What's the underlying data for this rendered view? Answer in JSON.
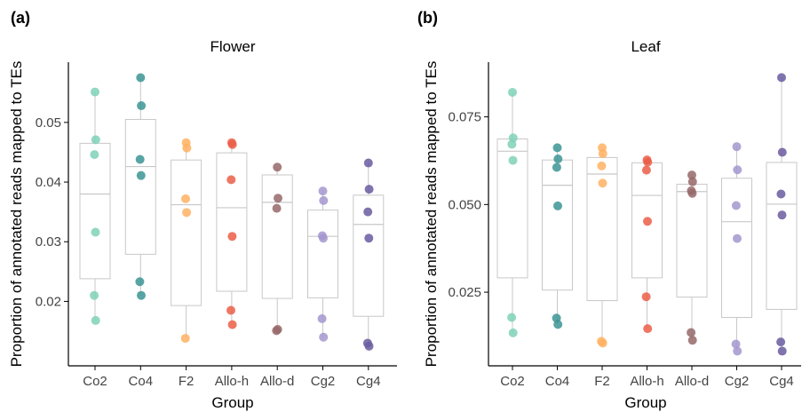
{
  "chart_data": [
    {
      "panel_label": "(a)",
      "type": "box+strip",
      "title": "Flower",
      "xlabel": "Group",
      "ylabel": "Proportion of annotated reads mapped to TEs",
      "categories": [
        "Co2",
        "Co4",
        "F2",
        "Allo-h",
        "Allo-d",
        "Cg2",
        "Cg4"
      ],
      "colors": [
        "#7fd1b9",
        "#3c9494",
        "#ffb262",
        "#eb5e48",
        "#96686a",
        "#a497cf",
        "#6b5ba0"
      ],
      "ylim": [
        0.0092,
        0.0601
      ],
      "yticks": [
        0.02,
        0.03,
        0.04,
        0.05
      ],
      "ytick_labels": [
        "0.02",
        "0.03",
        "0.04",
        "0.05"
      ],
      "boxes": [
        {
          "q1": 0.0238,
          "median": 0.038,
          "q3": 0.0465,
          "whisker_low": 0.0168,
          "whisker_high": 0.0551
        },
        {
          "q1": 0.0279,
          "median": 0.0426,
          "q3": 0.0505,
          "whisker_low": 0.021,
          "whisker_high": 0.0575
        },
        {
          "q1": 0.0193,
          "median": 0.0362,
          "q3": 0.0437,
          "whisker_low": 0.0138,
          "whisker_high": 0.0466
        },
        {
          "q1": 0.0217,
          "median": 0.0357,
          "q3": 0.0449,
          "whisker_low": 0.0161,
          "whisker_high": 0.0466
        },
        {
          "q1": 0.0205,
          "median": 0.0366,
          "q3": 0.0412,
          "whisker_low": 0.0151,
          "whisker_high": 0.0425
        },
        {
          "q1": 0.0206,
          "median": 0.0309,
          "q3": 0.0353,
          "whisker_low": 0.014,
          "whisker_high": 0.0385
        },
        {
          "q1": 0.0175,
          "median": 0.0329,
          "q3": 0.0378,
          "whisker_low": 0.0125,
          "whisker_high": 0.0432
        }
      ],
      "points": [
        [
          0.0551,
          0.0471,
          0.0446,
          0.0316,
          0.021,
          0.0168
        ],
        [
          0.0575,
          0.0528,
          0.0438,
          0.0411,
          0.0233,
          0.021
        ],
        [
          0.0466,
          0.0457,
          0.0372,
          0.0349,
          0.0138
        ],
        [
          0.0466,
          0.0463,
          0.0404,
          0.0309,
          0.0185,
          0.0161
        ],
        [
          0.0425,
          0.0373,
          0.0356,
          0.0153,
          0.0151
        ],
        [
          0.0385,
          0.0369,
          0.031,
          0.0306,
          0.0171,
          0.014
        ],
        [
          0.0432,
          0.0388,
          0.035,
          0.0306,
          0.013,
          0.0125
        ]
      ]
    },
    {
      "panel_label": "(b)",
      "type": "box+strip",
      "title": "Leaf",
      "xlabel": "Group",
      "ylabel": "Proportion of annotated reads mapped to TEs",
      "categories": [
        "Co2",
        "Co4",
        "F2",
        "Allo-h",
        "Allo-d",
        "Cg2",
        "Cg4"
      ],
      "colors": [
        "#7fd1b9",
        "#3c9494",
        "#ffb262",
        "#eb5e48",
        "#96686a",
        "#a497cf",
        "#6b5ba0"
      ],
      "ylim": [
        0.004,
        0.0906
      ],
      "yticks": [
        0.025,
        0.05,
        0.075
      ],
      "ytick_labels": [
        "0.025",
        "0.050",
        "0.075"
      ],
      "boxes": [
        {
          "q1": 0.0291,
          "median": 0.0652,
          "q3": 0.0687,
          "whisker_low": 0.0132,
          "whisker_high": 0.082
        },
        {
          "q1": 0.0256,
          "median": 0.0555,
          "q3": 0.0627,
          "whisker_low": 0.0158,
          "whisker_high": 0.0662
        },
        {
          "q1": 0.0226,
          "median": 0.0587,
          "q3": 0.0634,
          "whisker_low": 0.0105,
          "whisker_high": 0.0662
        },
        {
          "q1": 0.0291,
          "median": 0.0526,
          "q3": 0.0619,
          "whisker_low": 0.0146,
          "whisker_high": 0.0627
        },
        {
          "q1": 0.0236,
          "median": 0.0537,
          "q3": 0.0558,
          "whisker_low": 0.0113,
          "whisker_high": 0.0584
        },
        {
          "q1": 0.0178,
          "median": 0.0451,
          "q3": 0.0575,
          "whisker_low": 0.0082,
          "whisker_high": 0.0665
        },
        {
          "q1": 0.0201,
          "median": 0.0501,
          "q3": 0.062,
          "whisker_low": 0.0082,
          "whisker_high": 0.0862
        }
      ],
      "points": [
        [
          0.082,
          0.069,
          0.0672,
          0.0626,
          0.0178,
          0.0134
        ],
        [
          0.0662,
          0.063,
          0.0606,
          0.0496,
          0.0176,
          0.0158
        ],
        [
          0.0662,
          0.0645,
          0.061,
          0.0561,
          0.011,
          0.0105
        ],
        [
          0.0627,
          0.0621,
          0.0598,
          0.0452,
          0.0237,
          0.0146
        ],
        [
          0.0584,
          0.0565,
          0.0539,
          0.0532,
          0.0135,
          0.0113
        ],
        [
          0.0665,
          0.0599,
          0.0497,
          0.0403,
          0.0102,
          0.0082
        ],
        [
          0.0862,
          0.0649,
          0.053,
          0.047,
          0.0108,
          0.0082
        ]
      ]
    }
  ]
}
